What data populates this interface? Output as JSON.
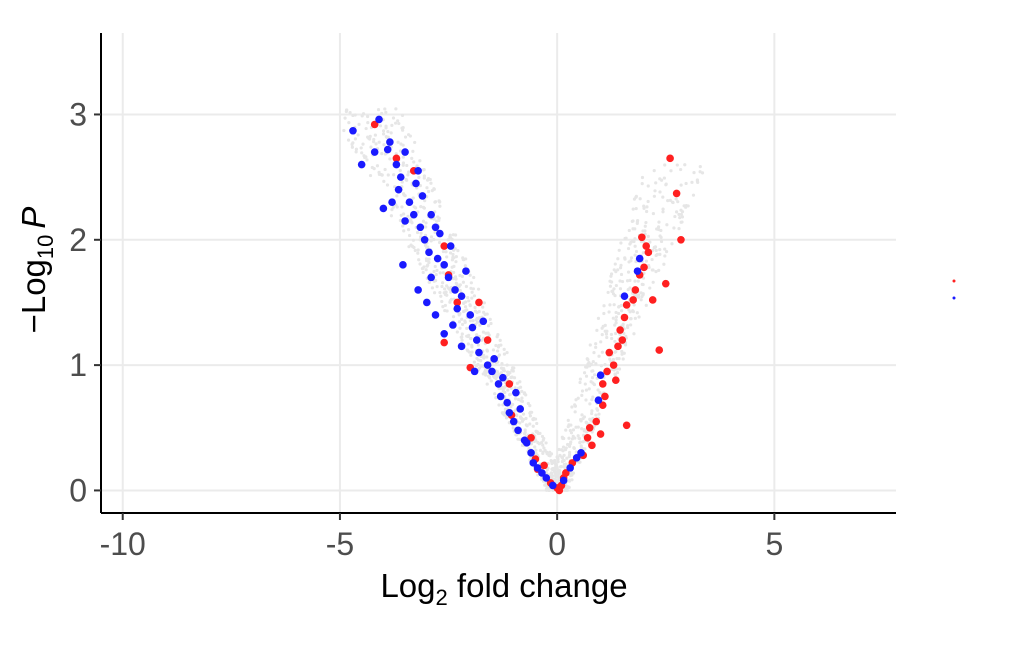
{
  "chart_data": {
    "type": "scatter",
    "xlabel": {
      "main": "Log",
      "sub": "2",
      "rest": " fold change"
    },
    "ylabel": {
      "pre": "−Log",
      "sub": "10",
      "italic": "P"
    },
    "xlim": [
      -10.5,
      7.8
    ],
    "ylim": [
      -0.18,
      3.65
    ],
    "x_ticks": [
      -10,
      -5,
      0,
      5
    ],
    "x_tick_labels": [
      "-10",
      "-5",
      "0",
      "5"
    ],
    "y_ticks": [
      0,
      1,
      2,
      3
    ],
    "y_tick_labels": [
      "0",
      "1",
      "2",
      "3"
    ],
    "grid": true,
    "colors": {
      "background_points": "#e6e6e6",
      "up": "#ff2020",
      "down": "#1a1aff",
      "grid": "#ebebeb",
      "axis": "#000000"
    },
    "series": [
      {
        "color": "#ff2020",
        "points": [
          [
            -4.2,
            2.92
          ],
          [
            -3.7,
            2.65
          ],
          [
            -3.3,
            2.55
          ],
          [
            -2.6,
            1.95
          ],
          [
            -2.5,
            1.72
          ],
          [
            -2.3,
            1.5
          ],
          [
            -1.8,
            1.5
          ],
          [
            -2.6,
            1.18
          ],
          [
            -2.0,
            0.98
          ],
          [
            -1.6,
            1.2
          ],
          [
            -1.1,
            0.85
          ],
          [
            -1.05,
            0.6
          ],
          [
            -0.6,
            0.42
          ],
          [
            -0.5,
            0.25
          ],
          [
            -0.45,
            0.17
          ],
          [
            -0.3,
            0.2
          ],
          [
            -0.15,
            0.06
          ],
          [
            0.0,
            0.02
          ],
          [
            0.05,
            0.0
          ],
          [
            0.1,
            0.04
          ],
          [
            0.15,
            0.1
          ],
          [
            0.2,
            0.14
          ],
          [
            0.35,
            0.22
          ],
          [
            0.6,
            0.28
          ],
          [
            0.7,
            0.42
          ],
          [
            0.75,
            0.5
          ],
          [
            0.8,
            0.36
          ],
          [
            0.9,
            0.55
          ],
          [
            1.0,
            0.45
          ],
          [
            1.05,
            0.68
          ],
          [
            1.1,
            0.75
          ],
          [
            1.05,
            0.85
          ],
          [
            1.15,
            0.95
          ],
          [
            1.2,
            1.1
          ],
          [
            1.3,
            1.0
          ],
          [
            1.4,
            1.15
          ],
          [
            1.45,
            1.28
          ],
          [
            1.5,
            1.2
          ],
          [
            1.35,
            0.88
          ],
          [
            1.55,
            1.38
          ],
          [
            1.6,
            1.48
          ],
          [
            1.6,
            0.52
          ],
          [
            1.75,
            1.52
          ],
          [
            1.8,
            1.6
          ],
          [
            1.9,
            1.72
          ],
          [
            2.0,
            1.78
          ],
          [
            2.1,
            1.9
          ],
          [
            2.2,
            1.52
          ],
          [
            2.35,
            1.12
          ],
          [
            1.95,
            2.02
          ],
          [
            2.05,
            1.95
          ],
          [
            2.5,
            1.65
          ],
          [
            2.6,
            2.65
          ],
          [
            2.75,
            2.37
          ],
          [
            2.85,
            2.0
          ]
        ]
      },
      {
        "color": "#1a1aff",
        "points": [
          [
            -4.7,
            2.87
          ],
          [
            -4.5,
            2.6
          ],
          [
            -4.1,
            2.96
          ],
          [
            -4.2,
            2.7
          ],
          [
            -3.9,
            2.72
          ],
          [
            -3.85,
            2.78
          ],
          [
            -3.7,
            2.6
          ],
          [
            -3.6,
            2.5
          ],
          [
            -3.65,
            2.4
          ],
          [
            -3.5,
            2.7
          ],
          [
            -3.4,
            2.3
          ],
          [
            -3.3,
            2.2
          ],
          [
            -3.25,
            2.45
          ],
          [
            -3.15,
            2.1
          ],
          [
            -3.05,
            2.0
          ],
          [
            -3.1,
            2.35
          ],
          [
            -2.95,
            1.9
          ],
          [
            -2.9,
            2.2
          ],
          [
            -2.8,
            2.1
          ],
          [
            -2.75,
            1.85
          ],
          [
            -2.7,
            2.05
          ],
          [
            -2.6,
            1.8
          ],
          [
            -2.5,
            1.7
          ],
          [
            -2.45,
            1.95
          ],
          [
            -2.35,
            1.6
          ],
          [
            -2.3,
            1.45
          ],
          [
            -2.2,
            1.55
          ],
          [
            -2.1,
            1.75
          ],
          [
            -2.0,
            1.4
          ],
          [
            -1.95,
            1.3
          ],
          [
            -1.85,
            1.2
          ],
          [
            -1.8,
            1.1
          ],
          [
            -1.7,
            1.35
          ],
          [
            -1.6,
            1.0
          ],
          [
            -1.5,
            0.95
          ],
          [
            -1.45,
            1.05
          ],
          [
            -1.35,
            0.85
          ],
          [
            -1.3,
            0.75
          ],
          [
            -1.25,
            0.9
          ],
          [
            -1.15,
            0.7
          ],
          [
            -1.1,
            0.62
          ],
          [
            -1.0,
            0.55
          ],
          [
            -0.95,
            0.78
          ],
          [
            -0.9,
            0.48
          ],
          [
            -0.85,
            0.65
          ],
          [
            -0.75,
            0.4
          ],
          [
            -0.7,
            0.38
          ],
          [
            -0.6,
            0.3
          ],
          [
            -0.55,
            0.22
          ],
          [
            -0.45,
            0.18
          ],
          [
            -0.35,
            0.14
          ],
          [
            -0.25,
            0.1
          ],
          [
            -0.1,
            0.04
          ],
          [
            -3.0,
            1.5
          ],
          [
            -3.2,
            1.6
          ],
          [
            -2.8,
            1.4
          ],
          [
            -2.6,
            1.25
          ],
          [
            -2.4,
            1.32
          ],
          [
            -2.9,
            1.7
          ],
          [
            -3.5,
            2.15
          ],
          [
            -3.8,
            2.3
          ],
          [
            -4.0,
            2.25
          ],
          [
            -3.55,
            1.8
          ],
          [
            -3.2,
            2.55
          ],
          [
            -2.2,
            1.15
          ],
          [
            -1.9,
            0.95
          ],
          [
            0.15,
            0.08
          ],
          [
            0.3,
            0.18
          ],
          [
            0.45,
            0.26
          ],
          [
            0.55,
            0.3
          ],
          [
            0.95,
            0.72
          ],
          [
            1.0,
            0.92
          ],
          [
            1.55,
            1.55
          ],
          [
            1.9,
            1.85
          ],
          [
            1.85,
            1.75
          ]
        ]
      }
    ],
    "legend": {
      "placement": "right",
      "entries": [
        {
          "color": "#ff2020"
        },
        {
          "color": "#1a1aff"
        }
      ]
    }
  }
}
